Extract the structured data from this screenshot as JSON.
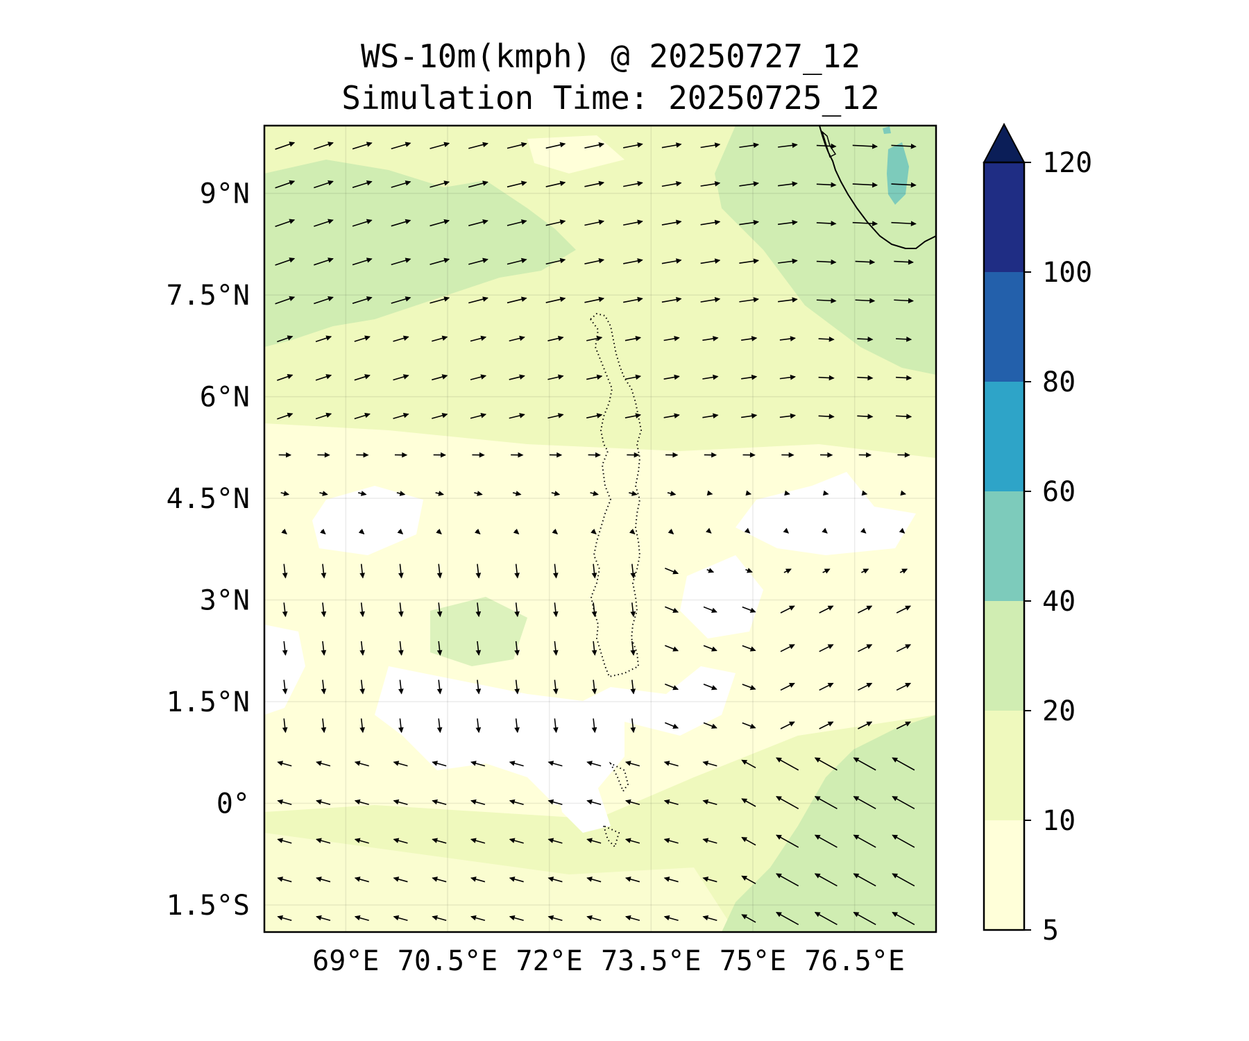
{
  "title": {
    "line1": "WS-10m(kmph) @ 20250727_12",
    "line2": "Simulation Time: 20250725_12"
  },
  "map": {
    "region": "Maldives / Laccadive Sea (Indian Ocean)",
    "lon_range": [
      67.8,
      77.7
    ],
    "lat_range": [
      -1.9,
      10.0
    ],
    "lat_ticks": [
      {
        "value": 9,
        "label": "9°N"
      },
      {
        "value": 7.5,
        "label": "7.5°N"
      },
      {
        "value": 6,
        "label": "6°N"
      },
      {
        "value": 4.5,
        "label": "4.5°N"
      },
      {
        "value": 3,
        "label": "3°N"
      },
      {
        "value": 1.5,
        "label": "1.5°N"
      },
      {
        "value": 0,
        "label": "0°"
      },
      {
        "value": -1.5,
        "label": "1.5°S"
      }
    ],
    "lon_ticks": [
      {
        "value": 69,
        "label": "69°E"
      },
      {
        "value": 70.5,
        "label": "70.5°E"
      },
      {
        "value": 72,
        "label": "72°E"
      },
      {
        "value": 73.5,
        "label": "73.5°E"
      },
      {
        "value": 75,
        "label": "75°E"
      },
      {
        "value": 76.5,
        "label": "76.5°E"
      }
    ],
    "field_colors": {
      "calm": "#ffffff",
      "5-10": "#ffffd9",
      "10-20": "#eff9bd",
      "20-40": "#d0edb2",
      "40-60": "#7dcbbb"
    },
    "coastline_color": "#000000",
    "vector_color": "#000000"
  },
  "colorbar": {
    "levels": [
      {
        "label": "5",
        "value": 5
      },
      {
        "label": "10",
        "value": 10
      },
      {
        "label": "20",
        "value": 20
      },
      {
        "label": "40",
        "value": 40
      },
      {
        "label": "60",
        "value": 60
      },
      {
        "label": "80",
        "value": 80
      },
      {
        "label": "100",
        "value": 100
      },
      {
        "label": "120",
        "value": 120
      }
    ],
    "colors": [
      "#ffffd9",
      "#eff9bd",
      "#d0edb2",
      "#7dcbbb",
      "#2ea4c8",
      "#2360ab",
      "#1f2d84"
    ],
    "extend_color": "#0b1e58",
    "extend": "max"
  }
}
